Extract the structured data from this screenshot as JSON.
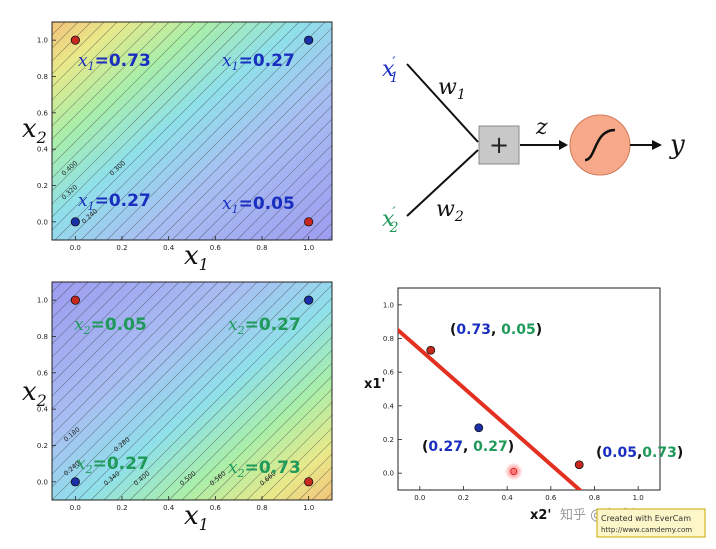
{
  "colors": {
    "blue_label": "#1a2fbf",
    "green_label": "#1f9a5a",
    "red_line": "#e33020",
    "point_red": "#c8281e",
    "point_blue": "#1b2fa8",
    "neuron_circle": "#f7a98a",
    "sum_box": "#c8c8c8"
  },
  "plot1": {
    "xlabel_main": "x",
    "xlabel_sub": "1",
    "ylabel_main": "x",
    "ylabel_sub": "2",
    "xticks": [
      "0.0",
      "0.2",
      "0.4",
      "0.6",
      "0.8",
      "1.0"
    ],
    "yticks": [
      "0.0",
      "0.2",
      "0.4",
      "0.6",
      "0.8",
      "1.0"
    ],
    "contour_labels": [
      "0.400",
      "0.300",
      "0.320",
      "0.240"
    ],
    "points": [
      {
        "x": 0.0,
        "y": 1.0,
        "color": "red"
      },
      {
        "x": 1.0,
        "y": 1.0,
        "color": "blue"
      },
      {
        "x": 0.0,
        "y": 0.0,
        "color": "blue"
      },
      {
        "x": 1.0,
        "y": 0.0,
        "color": "red"
      }
    ],
    "annotations": [
      {
        "var": "x",
        "sub": "1",
        "value": "=0.73"
      },
      {
        "var": "x",
        "sub": "1",
        "value": "=0.27"
      },
      {
        "var": "x",
        "sub": "1",
        "value": "=0.27"
      },
      {
        "var": "x",
        "sub": "1",
        "value": "=0.05"
      }
    ]
  },
  "plot2": {
    "xlabel_main": "x",
    "xlabel_sub": "1",
    "ylabel_main": "x",
    "ylabel_sub": "2",
    "xticks": [
      "0.0",
      "0.2",
      "0.4",
      "0.6",
      "0.8",
      "1.0"
    ],
    "yticks": [
      "0.0",
      "0.2",
      "0.4",
      "0.6",
      "0.8",
      "1.0"
    ],
    "contour_labels": [
      "0.180",
      "0.240",
      "0.280",
      "0.340",
      "0.400",
      "0.500",
      "0.560",
      "0.660"
    ],
    "points": [
      {
        "x": 0.0,
        "y": 1.0,
        "color": "red"
      },
      {
        "x": 1.0,
        "y": 1.0,
        "color": "blue"
      },
      {
        "x": 0.0,
        "y": 0.0,
        "color": "blue"
      },
      {
        "x": 1.0,
        "y": 0.0,
        "color": "red"
      }
    ],
    "annotations": [
      {
        "var": "x",
        "sub": "2",
        "value": "=0.05"
      },
      {
        "var": "x",
        "sub": "2",
        "value": "=0.27"
      },
      {
        "var": "x",
        "sub": "2",
        "value": "=0.27"
      },
      {
        "var": "x",
        "sub": "2",
        "value": "=0.73"
      }
    ]
  },
  "neuron": {
    "input1_var": "x",
    "input1_sub": "1",
    "input2_var": "x",
    "input2_sub": "2",
    "w1_var": "w",
    "w1_sub": "1",
    "w2_var": "w",
    "w2_sub": "2",
    "sum_symbol": "+",
    "z_label": "z",
    "y_label": "y"
  },
  "chart_data": {
    "type": "scatter",
    "xlabel": "x2'",
    "ylabel": "x1'",
    "xlim": [
      -0.1,
      1.1
    ],
    "ylim": [
      -0.1,
      1.1
    ],
    "xticks": [
      "0.0",
      "0.2",
      "0.4",
      "0.6",
      "0.8",
      "1.0"
    ],
    "yticks": [
      "0.0",
      "0.2",
      "0.4",
      "0.6",
      "0.8",
      "1.0"
    ],
    "points": [
      {
        "x": 0.05,
        "y": 0.73,
        "color": "red",
        "label_a": "0.73",
        "label_sep": ", ",
        "label_b": "0.05"
      },
      {
        "x": 0.27,
        "y": 0.27,
        "color": "blue",
        "label_a": "0.27",
        "label_sep": ", ",
        "label_b": "0.27"
      },
      {
        "x": 0.73,
        "y": 0.05,
        "color": "red",
        "label_a": "0.05",
        "label_sep": ",",
        "label_b": "0.73"
      }
    ],
    "line": {
      "x": [
        -0.1,
        0.75
      ],
      "y": [
        0.85,
        -0.12
      ]
    },
    "highlight": {
      "x": 0.43,
      "y": 0.01
    }
  },
  "watermark": {
    "site_text": "知乎 @皇威鲁",
    "badge_line1": "Created with EverCam",
    "badge_line2": "http://www.camdemy.com"
  }
}
